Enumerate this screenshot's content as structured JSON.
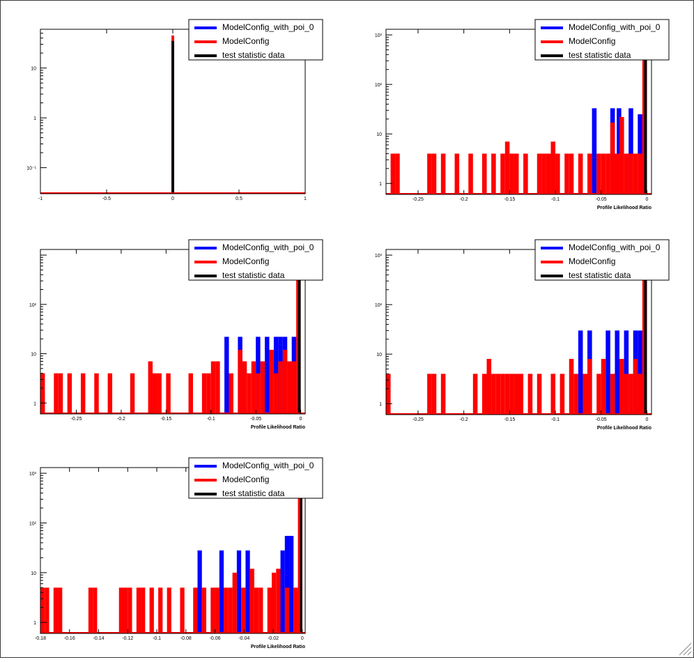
{
  "colors": {
    "alt_model": "#0000ff",
    "null_model": "#ff0000",
    "data": "#000000",
    "frame": "#000000",
    "background": "#ffffff"
  },
  "legend": {
    "entries": [
      {
        "label": "ModelConfig_with_poi_0",
        "color": "#0000ff"
      },
      {
        "label": "ModelConfig",
        "color": "#ff0000"
      },
      {
        "label": "test statistic data",
        "color": "#000000"
      }
    ]
  },
  "chart_data": [
    {
      "type": "bar",
      "xlabel": "",
      "ylabel": "",
      "xlim": [
        -1,
        1
      ],
      "xticks": [
        "-1",
        "-0.5",
        "0",
        "0.5",
        "1"
      ],
      "yscale": "log",
      "ylim": [
        0.03,
        60
      ],
      "yticks": [
        "10⁻¹",
        "1",
        "10"
      ],
      "series": [
        {
          "name": "ModelConfig_with_poi_0",
          "color": "#0000ff",
          "bins": []
        },
        {
          "name": "ModelConfig",
          "color": "#ff0000",
          "bins": [
            [
              -0.01,
              0.01,
              45
            ]
          ]
        },
        {
          "name": "test statistic data",
          "color": "#000000",
          "bins": [
            [
              -0.01,
              0.01,
              35
            ]
          ]
        }
      ],
      "baseline_series": "ModelConfig",
      "legend_position": "top-right"
    },
    {
      "type": "bar",
      "xlabel": "Profile Likelihood Ratio",
      "ylabel": "",
      "xlim": [
        -0.285,
        0.005
      ],
      "xticks": [
        "-0.25",
        "-0.2",
        "-0.15",
        "-0.1",
        "-0.05",
        "0"
      ],
      "xtick_values": [
        -0.25,
        -0.2,
        -0.15,
        -0.1,
        -0.05,
        0
      ],
      "yscale": "log",
      "ylim": [
        0.6,
        1300
      ],
      "yticks": [
        "1",
        "10",
        "10²",
        "10³"
      ],
      "series": [
        {
          "name": "ModelConfig_with_poi_0",
          "color": "#0000ff",
          "bins": [
            [
              -0.06,
              -0.055,
              33
            ],
            [
              -0.04,
              -0.035,
              33
            ],
            [
              -0.033,
              -0.028,
              33
            ],
            [
              -0.02,
              -0.015,
              33
            ],
            [
              -0.01,
              -0.005,
              25
            ]
          ]
        },
        {
          "name": "ModelConfig",
          "color": "#ff0000",
          "bins": [
            [
              -0.28,
              -0.275,
              4
            ],
            [
              -0.275,
              -0.27,
              4
            ],
            [
              -0.24,
              -0.235,
              4
            ],
            [
              -0.235,
              -0.23,
              4
            ],
            [
              -0.225,
              -0.22,
              4
            ],
            [
              -0.21,
              -0.205,
              4
            ],
            [
              -0.195,
              -0.19,
              4
            ],
            [
              -0.18,
              -0.175,
              4
            ],
            [
              -0.17,
              -0.165,
              4
            ],
            [
              -0.16,
              -0.155,
              4
            ],
            [
              -0.155,
              -0.15,
              7
            ],
            [
              -0.15,
              -0.145,
              4
            ],
            [
              -0.145,
              -0.14,
              4
            ],
            [
              -0.135,
              -0.13,
              4
            ],
            [
              -0.12,
              -0.115,
              4
            ],
            [
              -0.115,
              -0.11,
              4
            ],
            [
              -0.11,
              -0.105,
              4
            ],
            [
              -0.105,
              -0.1,
              7
            ],
            [
              -0.1,
              -0.095,
              4
            ],
            [
              -0.09,
              -0.085,
              4
            ],
            [
              -0.085,
              -0.08,
              4
            ],
            [
              -0.075,
              -0.07,
              4
            ],
            [
              -0.065,
              -0.06,
              4
            ],
            [
              -0.055,
              -0.05,
              4
            ],
            [
              -0.05,
              -0.045,
              4
            ],
            [
              -0.045,
              -0.04,
              4
            ],
            [
              -0.04,
              -0.035,
              17
            ],
            [
              -0.035,
              -0.03,
              4
            ],
            [
              -0.03,
              -0.025,
              22
            ],
            [
              -0.025,
              -0.02,
              4
            ],
            [
              -0.02,
              -0.015,
              4
            ],
            [
              -0.015,
              -0.01,
              4
            ],
            [
              -0.01,
              -0.005,
              4
            ],
            [
              -0.005,
              0.0,
              800
            ]
          ]
        },
        {
          "name": "test statistic data",
          "color": "#000000",
          "bins": [
            [
              -0.003,
              0.0,
              800
            ]
          ]
        }
      ],
      "legend_position": "top-right"
    },
    {
      "type": "bar",
      "xlabel": "Profile Likelihood Ratio",
      "ylabel": "",
      "xlim": [
        -0.29,
        0.005
      ],
      "xticks": [
        "-0.25",
        "-0.2",
        "-0.15",
        "-0.1",
        "-0.05",
        "0"
      ],
      "xtick_values": [
        -0.25,
        -0.2,
        -0.15,
        -0.1,
        -0.05,
        0
      ],
      "yscale": "log",
      "ylim": [
        0.6,
        1300
      ],
      "yticks": [
        "1",
        "10",
        "10²"
      ],
      "series": [
        {
          "name": "ModelConfig_with_poi_0",
          "color": "#0000ff",
          "bins": [
            [
              -0.085,
              -0.08,
              22
            ],
            [
              -0.07,
              -0.065,
              22
            ],
            [
              -0.05,
              -0.045,
              22
            ],
            [
              -0.04,
              -0.035,
              22
            ],
            [
              -0.03,
              -0.025,
              22
            ],
            [
              -0.025,
              -0.02,
              22
            ],
            [
              -0.02,
              -0.015,
              22
            ],
            [
              -0.01,
              -0.005,
              22
            ]
          ]
        },
        {
          "name": "ModelConfig",
          "color": "#ff0000",
          "bins": [
            [
              -0.29,
              -0.285,
              4
            ],
            [
              -0.275,
              -0.27,
              4
            ],
            [
              -0.27,
              -0.265,
              4
            ],
            [
              -0.26,
              -0.255,
              4
            ],
            [
              -0.245,
              -0.24,
              4
            ],
            [
              -0.23,
              -0.225,
              4
            ],
            [
              -0.215,
              -0.21,
              4
            ],
            [
              -0.19,
              -0.185,
              4
            ],
            [
              -0.17,
              -0.165,
              7
            ],
            [
              -0.165,
              -0.16,
              4
            ],
            [
              -0.16,
              -0.155,
              4
            ],
            [
              -0.15,
              -0.145,
              4
            ],
            [
              -0.125,
              -0.12,
              4
            ],
            [
              -0.11,
              -0.105,
              4
            ],
            [
              -0.105,
              -0.1,
              4
            ],
            [
              -0.1,
              -0.095,
              7
            ],
            [
              -0.095,
              -0.09,
              7
            ],
            [
              -0.08,
              -0.075,
              4
            ],
            [
              -0.07,
              -0.065,
              12
            ],
            [
              -0.065,
              -0.06,
              7
            ],
            [
              -0.06,
              -0.055,
              4
            ],
            [
              -0.055,
              -0.05,
              7
            ],
            [
              -0.05,
              -0.045,
              4
            ],
            [
              -0.045,
              -0.04,
              7
            ],
            [
              -0.035,
              -0.03,
              12
            ],
            [
              -0.03,
              -0.025,
              4
            ],
            [
              -0.025,
              -0.02,
              7
            ],
            [
              -0.02,
              -0.015,
              12
            ],
            [
              -0.015,
              -0.01,
              7
            ],
            [
              -0.01,
              -0.005,
              7
            ],
            [
              -0.005,
              0.0,
              900
            ]
          ]
        },
        {
          "name": "test statistic data",
          "color": "#000000",
          "bins": [
            [
              -0.003,
              0.0,
              900
            ]
          ]
        }
      ],
      "legend_position": "top-right"
    },
    {
      "type": "bar",
      "xlabel": "Profile Likelihood Ratio",
      "ylabel": "",
      "xlim": [
        -0.285,
        0.005
      ],
      "xticks": [
        "-0.25",
        "-0.2",
        "-0.15",
        "-0.1",
        "-0.05",
        "0"
      ],
      "xtick_values": [
        -0.25,
        -0.2,
        -0.15,
        -0.1,
        -0.05,
        0
      ],
      "yscale": "log",
      "ylim": [
        0.6,
        1300
      ],
      "yticks": [
        "1",
        "10",
        "10²",
        "10³"
      ],
      "series": [
        {
          "name": "ModelConfig_with_poi_0",
          "color": "#0000ff",
          "bins": [
            [
              -0.075,
              -0.07,
              30
            ],
            [
              -0.065,
              -0.06,
              30
            ],
            [
              -0.045,
              -0.04,
              30
            ],
            [
              -0.035,
              -0.03,
              30
            ],
            [
              -0.025,
              -0.02,
              30
            ],
            [
              -0.015,
              -0.01,
              30
            ],
            [
              -0.01,
              -0.005,
              30
            ]
          ]
        },
        {
          "name": "ModelConfig",
          "color": "#ff0000",
          "bins": [
            [
              -0.285,
              -0.28,
              4
            ],
            [
              -0.24,
              -0.235,
              4
            ],
            [
              -0.235,
              -0.23,
              4
            ],
            [
              -0.225,
              -0.22,
              4
            ],
            [
              -0.19,
              -0.185,
              4
            ],
            [
              -0.18,
              -0.175,
              4
            ],
            [
              -0.175,
              -0.17,
              8
            ],
            [
              -0.17,
              -0.165,
              4
            ],
            [
              -0.165,
              -0.16,
              4
            ],
            [
              -0.16,
              -0.155,
              4
            ],
            [
              -0.155,
              -0.15,
              4
            ],
            [
              -0.15,
              -0.145,
              4
            ],
            [
              -0.145,
              -0.14,
              4
            ],
            [
              -0.14,
              -0.135,
              4
            ],
            [
              -0.13,
              -0.125,
              4
            ],
            [
              -0.12,
              -0.115,
              4
            ],
            [
              -0.105,
              -0.1,
              4
            ],
            [
              -0.095,
              -0.09,
              4
            ],
            [
              -0.085,
              -0.08,
              8
            ],
            [
              -0.08,
              -0.075,
              4
            ],
            [
              -0.07,
              -0.065,
              4
            ],
            [
              -0.065,
              -0.06,
              8
            ],
            [
              -0.055,
              -0.05,
              4
            ],
            [
              -0.05,
              -0.045,
              8
            ],
            [
              -0.04,
              -0.035,
              4
            ],
            [
              -0.03,
              -0.025,
              8
            ],
            [
              -0.025,
              -0.02,
              4
            ],
            [
              -0.02,
              -0.015,
              4
            ],
            [
              -0.015,
              -0.01,
              8
            ],
            [
              -0.01,
              -0.005,
              4
            ],
            [
              -0.005,
              0.0,
              900
            ]
          ]
        },
        {
          "name": "test statistic data",
          "color": "#000000",
          "bins": [
            [
              -0.003,
              0.0,
              900
            ]
          ]
        }
      ],
      "legend_position": "top-right"
    },
    {
      "type": "bar",
      "xlabel": "Profile Likelihood Ratio",
      "ylabel": "",
      "xlim": [
        -0.18,
        0.002
      ],
      "xticks": [
        "-0.18",
        "-0.16",
        "-0.14",
        "-0.12",
        "-0.1",
        "-0.08",
        "-0.06",
        "-0.04",
        "-0.02",
        "0"
      ],
      "xtick_values": [
        -0.18,
        -0.16,
        -0.14,
        -0.12,
        -0.1,
        -0.08,
        -0.06,
        -0.04,
        -0.02,
        0
      ],
      "yscale": "log",
      "ylim": [
        0.6,
        1300
      ],
      "yticks": [
        "1",
        "10",
        "10²",
        "10³"
      ],
      "series": [
        {
          "name": "ModelConfig_with_poi_0",
          "color": "#0000ff",
          "bins": [
            [
              -0.072,
              -0.069,
              28
            ],
            [
              -0.057,
              -0.054,
              28
            ],
            [
              -0.045,
              -0.042,
              28
            ],
            [
              -0.039,
              -0.036,
              28
            ],
            [
              -0.015,
              -0.012,
              28
            ],
            [
              -0.012,
              -0.009,
              55
            ],
            [
              -0.009,
              -0.006,
              55
            ]
          ]
        },
        {
          "name": "ModelConfig",
          "color": "#ff0000",
          "bins": [
            [
              -0.18,
              -0.177,
              5
            ],
            [
              -0.177,
              -0.174,
              5
            ],
            [
              -0.171,
              -0.168,
              5
            ],
            [
              -0.168,
              -0.165,
              5
            ],
            [
              -0.147,
              -0.144,
              5
            ],
            [
              -0.144,
              -0.141,
              5
            ],
            [
              -0.126,
              -0.123,
              5
            ],
            [
              -0.123,
              -0.12,
              5
            ],
            [
              -0.12,
              -0.117,
              5
            ],
            [
              -0.114,
              -0.111,
              5
            ],
            [
              -0.111,
              -0.108,
              5
            ],
            [
              -0.105,
              -0.102,
              5
            ],
            [
              -0.099,
              -0.096,
              5
            ],
            [
              -0.093,
              -0.09,
              5
            ],
            [
              -0.084,
              -0.081,
              5
            ],
            [
              -0.075,
              -0.072,
              5
            ],
            [
              -0.069,
              -0.066,
              5
            ],
            [
              -0.063,
              -0.06,
              5
            ],
            [
              -0.06,
              -0.057,
              5
            ],
            [
              -0.054,
              -0.051,
              5
            ],
            [
              -0.051,
              -0.048,
              5
            ],
            [
              -0.048,
              -0.045,
              10
            ],
            [
              -0.042,
              -0.039,
              5
            ],
            [
              -0.036,
              -0.033,
              12
            ],
            [
              -0.033,
              -0.03,
              5
            ],
            [
              -0.03,
              -0.027,
              5
            ],
            [
              -0.024,
              -0.021,
              5
            ],
            [
              -0.021,
              -0.018,
              10
            ],
            [
              -0.018,
              -0.015,
              12
            ],
            [
              -0.012,
              -0.009,
              5
            ],
            [
              -0.006,
              -0.003,
              5
            ],
            [
              -0.003,
              0.0,
              900
            ]
          ]
        },
        {
          "name": "test statistic data",
          "color": "#000000",
          "bins": [
            [
              -0.0015,
              0.0,
              900
            ]
          ]
        }
      ],
      "legend_position": "top-right"
    }
  ]
}
